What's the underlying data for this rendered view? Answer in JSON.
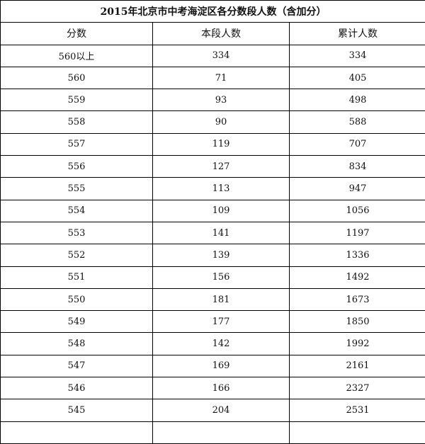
{
  "title": "2015年北京市中考海淀区各分数段人数（含加分）",
  "columns": [
    "分数",
    "本段人数",
    "累计人数"
  ],
  "rows": [
    [
      "560以上",
      "334",
      "334"
    ],
    [
      "560",
      "71",
      "405"
    ],
    [
      "559",
      "93",
      "498"
    ],
    [
      "558",
      "90",
      "588"
    ],
    [
      "557",
      "119",
      "707"
    ],
    [
      "556",
      "127",
      "834"
    ],
    [
      "555",
      "113",
      "947"
    ],
    [
      "554",
      "109",
      "1056"
    ],
    [
      "553",
      "141",
      "1197"
    ],
    [
      "552",
      "139",
      "1336"
    ],
    [
      "551",
      "156",
      "1492"
    ],
    [
      "550",
      "181",
      "1673"
    ],
    [
      "549",
      "177",
      "1850"
    ],
    [
      "548",
      "142",
      "1992"
    ],
    [
      "547",
      "169",
      "2161"
    ],
    [
      "546",
      "166",
      "2327"
    ],
    [
      "545",
      "204",
      "2531"
    ]
  ]
}
